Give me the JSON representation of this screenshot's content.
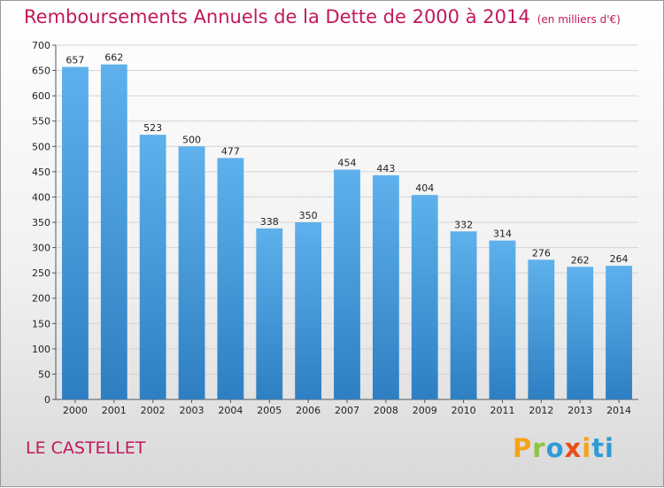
{
  "chart_data": {
    "type": "bar",
    "title": "Remboursements Annuels de la Dette de 2000 à 2014",
    "unit": "(en milliers d'€)",
    "categories": [
      "2000",
      "2001",
      "2002",
      "2003",
      "2004",
      "2005",
      "2006",
      "2007",
      "2008",
      "2009",
      "2010",
      "2011",
      "2012",
      "2013",
      "2014"
    ],
    "values": [
      657,
      662,
      523,
      500,
      477,
      338,
      350,
      454,
      443,
      404,
      332,
      314,
      276,
      262,
      264
    ],
    "ylim": [
      0,
      700
    ],
    "yticks": [
      0,
      50,
      100,
      150,
      200,
      250,
      300,
      350,
      400,
      450,
      500,
      550,
      600,
      650,
      700
    ],
    "grid": true,
    "xlabel": "",
    "ylabel": "",
    "bar_color": "#3d93d8"
  },
  "footer": {
    "place": "LE CASTELLET",
    "logo_letters": [
      "P",
      "r",
      "o",
      "x",
      "i",
      "ti"
    ]
  },
  "colors": {
    "title": "#c2185b",
    "grid": "#d4d4d4"
  }
}
